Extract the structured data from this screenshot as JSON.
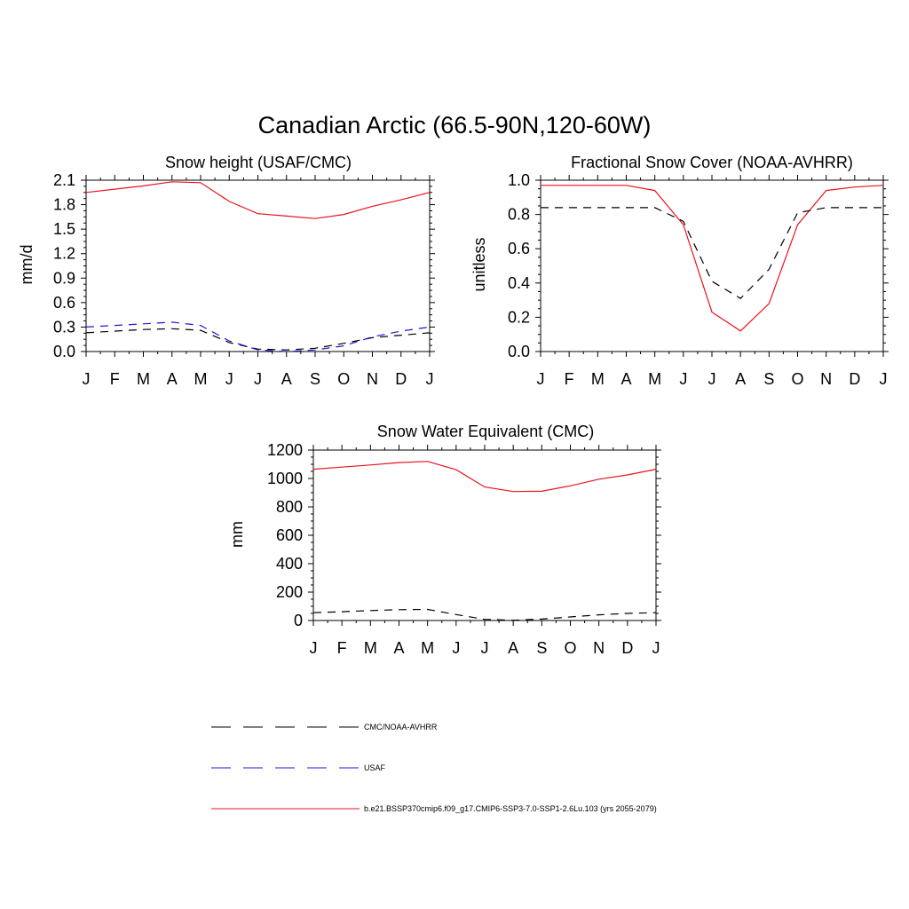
{
  "figure_title": "Canadian Arctic (66.5-90N,120-60W)",
  "colors": {
    "model": "#e8141c",
    "cmc": "#000000",
    "usaf": "#1a1adc"
  },
  "legend": {
    "entries": [
      {
        "label": "CMC/NOAA-AVHRR",
        "color": "#000000",
        "dash": "dashed"
      },
      {
        "label": "USAF",
        "color": "#1a1adc",
        "dash": "dashed"
      },
      {
        "label": "b.e21.BSSP370cmip6.f09_g17.CMIP6-SSP3-7.0-SSP1-2.6Lu.103 (yrs 2055-2079)",
        "color": "#e8141c",
        "dash": "solid"
      }
    ]
  },
  "chart_data": [
    {
      "type": "line",
      "title": "Snow height (USAF/CMC)",
      "ylabel": "mm/d",
      "xlabel": "",
      "categories": [
        "J",
        "F",
        "M",
        "A",
        "M",
        "J",
        "J",
        "A",
        "S",
        "O",
        "N",
        "D",
        "J"
      ],
      "ylim": [
        0,
        2.1
      ],
      "yticks": [
        "0.0",
        "0.3",
        "0.6",
        "0.9",
        "1.2",
        "1.5",
        "1.8",
        "2.1"
      ],
      "ytick_values": [
        0,
        0.3,
        0.6,
        0.9,
        1.2,
        1.5,
        1.8,
        2.1
      ],
      "series": [
        {
          "name": "b.e21.BSSP370cmip6.f09_g17.CMIP6-SSP3-7.0-SSP1-2.6Lu.103 (yrs 2055-2079)",
          "color": "#e8141c",
          "dash": "solid",
          "values": [
            1.95,
            1.99,
            2.03,
            2.08,
            2.07,
            1.84,
            1.69,
            1.66,
            1.63,
            1.68,
            1.78,
            1.86,
            1.95
          ]
        },
        {
          "name": "CMC/NOAA-AVHRR",
          "color": "#000000",
          "dash": "dashed",
          "values": [
            0.23,
            0.25,
            0.27,
            0.28,
            0.26,
            0.11,
            0.03,
            0.02,
            0.04,
            0.1,
            0.17,
            0.2,
            0.23
          ]
        },
        {
          "name": "USAF",
          "color": "#1a1adc",
          "dash": "dashed",
          "values": [
            0.3,
            0.32,
            0.34,
            0.36,
            0.32,
            0.13,
            0.02,
            0.0,
            0.02,
            0.07,
            0.18,
            0.25,
            0.3
          ]
        }
      ]
    },
    {
      "type": "line",
      "title": "Fractional Snow Cover (NOAA-AVHRR)",
      "ylabel": "unitless",
      "xlabel": "",
      "categories": [
        "J",
        "F",
        "M",
        "A",
        "M",
        "J",
        "J",
        "A",
        "S",
        "O",
        "N",
        "D",
        "J"
      ],
      "ylim": [
        0,
        1.0
      ],
      "yticks": [
        "0.0",
        "0.2",
        "0.4",
        "0.6",
        "0.8",
        "1.0"
      ],
      "ytick_values": [
        0,
        0.2,
        0.4,
        0.6,
        0.8,
        1.0
      ],
      "series": [
        {
          "name": "b.e21.BSSP370cmip6.f09_g17.CMIP6-SSP3-7.0-SSP1-2.6Lu.103 (yrs 2055-2079)",
          "color": "#e8141c",
          "dash": "solid",
          "values": [
            0.97,
            0.97,
            0.97,
            0.97,
            0.94,
            0.74,
            0.23,
            0.12,
            0.28,
            0.74,
            0.94,
            0.96,
            0.97
          ]
        },
        {
          "name": "CMC/NOAA-AVHRR",
          "color": "#000000",
          "dash": "dashed",
          "values": [
            0.84,
            0.84,
            0.84,
            0.84,
            0.84,
            0.76,
            0.41,
            0.31,
            0.48,
            0.81,
            0.84,
            0.84,
            0.84
          ]
        }
      ]
    },
    {
      "type": "line",
      "title": "Snow Water Equivalent (CMC)",
      "ylabel": "mm",
      "xlabel": "",
      "categories": [
        "J",
        "F",
        "M",
        "A",
        "M",
        "J",
        "J",
        "A",
        "S",
        "O",
        "N",
        "D",
        "J"
      ],
      "ylim": [
        0,
        1200
      ],
      "yticks": [
        "0",
        "200",
        "400",
        "600",
        "800",
        "1000",
        "1200"
      ],
      "ytick_values": [
        0,
        200,
        400,
        600,
        800,
        1000,
        1200
      ],
      "series": [
        {
          "name": "b.e21.BSSP370cmip6.f09_g17.CMIP6-SSP3-7.0-SSP1-2.6Lu.103 (yrs 2055-2079)",
          "color": "#e8141c",
          "dash": "solid",
          "values": [
            1065,
            1080,
            1095,
            1112,
            1120,
            1062,
            940,
            908,
            910,
            948,
            995,
            1025,
            1065
          ]
        },
        {
          "name": "CMC/NOAA-AVHRR",
          "color": "#000000",
          "dash": "dashed",
          "values": [
            55,
            62,
            70,
            76,
            78,
            42,
            8,
            2,
            10,
            25,
            40,
            50,
            55
          ]
        }
      ]
    }
  ]
}
